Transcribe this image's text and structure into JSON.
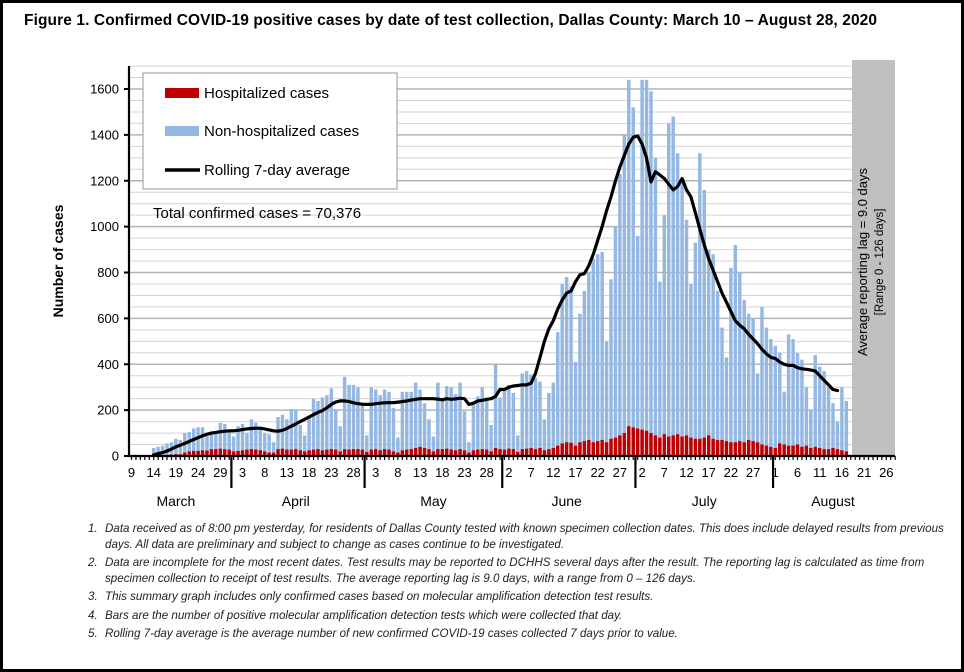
{
  "page": {
    "title": "Figure 1. Confirmed COVID-19 positive cases by date of test collection, Dallas County: March 10 – August 28, 2020"
  },
  "chart_data": {
    "type": "bar",
    "stacked": true,
    "title": "Figure 1. Confirmed COVID-19 positive cases by date of test collection, Dallas County: March 10 – August 28, 2020",
    "xlabel": "",
    "ylabel": "Number of cases",
    "ylim": [
      0,
      1700
    ],
    "yticks": [
      0,
      200,
      400,
      600,
      800,
      1000,
      1200,
      1400,
      1600
    ],
    "grid": "horizontal minor gridlines every 50 cases",
    "x_axis": {
      "start_date": "2020-03-09",
      "end_date": "2020-08-28",
      "tick_days": [
        {
          "label": "9",
          "day": 0
        },
        {
          "label": "14",
          "day": 5
        },
        {
          "label": "19",
          "day": 10
        },
        {
          "label": "24",
          "day": 15
        },
        {
          "label": "29",
          "day": 20
        },
        {
          "label": "3",
          "day": 25
        },
        {
          "label": "8",
          "day": 30
        },
        {
          "label": "13",
          "day": 35
        },
        {
          "label": "18",
          "day": 40
        },
        {
          "label": "23",
          "day": 45
        },
        {
          "label": "28",
          "day": 50
        },
        {
          "label": "3",
          "day": 55
        },
        {
          "label": "8",
          "day": 60
        },
        {
          "label": "13",
          "day": 65
        },
        {
          "label": "18",
          "day": 70
        },
        {
          "label": "23",
          "day": 75
        },
        {
          "label": "28",
          "day": 80
        },
        {
          "label": "2",
          "day": 85
        },
        {
          "label": "7",
          "day": 90
        },
        {
          "label": "12",
          "day": 95
        },
        {
          "label": "17",
          "day": 100
        },
        {
          "label": "22",
          "day": 105
        },
        {
          "label": "27",
          "day": 110
        },
        {
          "label": "2",
          "day": 115
        },
        {
          "label": "7",
          "day": 120
        },
        {
          "label": "12",
          "day": 125
        },
        {
          "label": "17",
          "day": 130
        },
        {
          "label": "22",
          "day": 135
        },
        {
          "label": "27",
          "day": 140
        },
        {
          "label": "1",
          "day": 145
        },
        {
          "label": "6",
          "day": 150
        },
        {
          "label": "11",
          "day": 155
        },
        {
          "label": "16",
          "day": 160
        },
        {
          "label": "21",
          "day": 165
        },
        {
          "label": "26",
          "day": 170
        }
      ],
      "month_separators_day": [
        22.5,
        52.5,
        83.5,
        113.5,
        144.5
      ],
      "months": [
        {
          "label": "March",
          "center_day": 10
        },
        {
          "label": "April",
          "center_day": 37
        },
        {
          "label": "May",
          "center_day": 68
        },
        {
          "label": "June",
          "center_day": 98
        },
        {
          "label": "July",
          "center_day": 129
        },
        {
          "label": "August",
          "center_day": 158
        }
      ]
    },
    "first_bar_day": 5,
    "series": [
      {
        "name": "Non-hospitalized cases",
        "color": "#95b8e3",
        "note": "values are TOTAL daily cases (hospitalized + non-hospitalized), one per day starting first_bar_day",
        "values": [
          35,
          40,
          45,
          55,
          60,
          75,
          70,
          100,
          105,
          120,
          125,
          125,
          95,
          100,
          100,
          145,
          140,
          110,
          85,
          130,
          140,
          100,
          160,
          145,
          125,
          100,
          95,
          60,
          170,
          180,
          160,
          205,
          200,
          135,
          90,
          175,
          250,
          240,
          255,
          265,
          295,
          205,
          130,
          345,
          310,
          310,
          300,
          230,
          90,
          300,
          290,
          265,
          290,
          280,
          210,
          80,
          280,
          280,
          280,
          320,
          290,
          230,
          160,
          85,
          320,
          250,
          305,
          300,
          270,
          320,
          195,
          60,
          230,
          260,
          300,
          250,
          135,
          400,
          255,
          285,
          310,
          275,
          90,
          360,
          370,
          355,
          340,
          325,
          160,
          275,
          320,
          540,
          750,
          780,
          740,
          410,
          620,
          720,
          800,
          860,
          880,
          890,
          500,
          770,
          1000,
          1230,
          1400,
          1640,
          1520,
          960,
          1640,
          1640,
          1590,
          1300,
          760,
          1050,
          1450,
          1480,
          1320,
          1190,
          1030,
          750,
          930,
          1320,
          1160,
          900,
          880,
          720,
          560,
          430,
          820,
          920,
          800,
          680,
          620,
          600,
          360,
          650,
          560,
          510,
          480,
          450,
          280,
          530,
          510,
          450,
          420,
          300,
          200,
          440,
          390,
          370,
          300,
          230,
          150,
          300,
          240
        ]
      },
      {
        "name": "Hospitalized cases",
        "color": "#c00000",
        "values": [
          2,
          3,
          4,
          5,
          6,
          8,
          8,
          15,
          20,
          22,
          22,
          25,
          24,
          30,
          30,
          32,
          30,
          28,
          20,
          22,
          25,
          28,
          30,
          28,
          25,
          20,
          15,
          15,
          30,
          32,
          28,
          28,
          30,
          25,
          20,
          25,
          28,
          30,
          25,
          28,
          30,
          28,
          20,
          30,
          28,
          30,
          30,
          28,
          18,
          28,
          30,
          25,
          30,
          28,
          20,
          15,
          25,
          28,
          30,
          35,
          40,
          35,
          30,
          20,
          30,
          30,
          32,
          28,
          25,
          30,
          25,
          15,
          25,
          28,
          30,
          28,
          20,
          35,
          30,
          28,
          32,
          30,
          18,
          30,
          32,
          35,
          30,
          35,
          25,
          30,
          35,
          45,
          55,
          60,
          58,
          45,
          60,
          65,
          70,
          60,
          65,
          70,
          60,
          75,
          80,
          90,
          100,
          130,
          125,
          120,
          115,
          110,
          100,
          90,
          80,
          95,
          85,
          90,
          95,
          85,
          90,
          80,
          75,
          75,
          80,
          90,
          75,
          70,
          70,
          65,
          60,
          60,
          65,
          60,
          70,
          65,
          60,
          50,
          45,
          40,
          35,
          55,
          50,
          45,
          45,
          50,
          40,
          45,
          35,
          40,
          35,
          30,
          30,
          35,
          30,
          25,
          20,
          25,
          15,
          10,
          10,
          20,
          15
        ]
      },
      {
        "name": "Rolling 7-day average",
        "type": "line",
        "color": "#000000",
        "start_day": 5,
        "values": [
          5,
          10,
          15,
          22,
          30,
          40,
          47,
          55,
          63,
          72,
          80,
          88,
          95,
          100,
          103,
          106,
          108,
          110,
          110,
          112,
          115,
          118,
          120,
          121,
          121,
          118,
          114,
          110,
          108,
          112,
          120,
          130,
          140,
          150,
          160,
          170,
          180,
          190,
          198,
          210,
          225,
          235,
          240,
          240,
          237,
          232,
          228,
          226,
          225,
          225,
          228,
          230,
          232,
          233,
          233,
          235,
          237,
          240,
          244,
          247,
          250,
          250,
          250,
          250,
          248,
          245,
          250,
          247,
          249,
          252,
          250,
          225,
          230,
          240,
          243,
          247,
          250,
          260,
          290,
          290,
          300,
          305,
          308,
          310,
          310,
          318,
          360,
          430,
          500,
          555,
          590,
          640,
          680,
          710,
          720,
          760,
          790,
          795,
          830,
          880,
          940,
          1000,
          1070,
          1130,
          1200,
          1260,
          1310,
          1360,
          1390,
          1395,
          1360,
          1300,
          1195,
          1240,
          1225,
          1210,
          1185,
          1160,
          1175,
          1210,
          1160,
          1130,
          1060,
          990,
          920,
          860,
          810,
          760,
          710,
          670,
          630,
          590,
          570,
          555,
          530,
          510,
          490,
          465,
          445,
          430,
          425,
          410,
          400,
          395,
          395,
          385,
          380,
          378,
          375,
          370,
          350,
          330,
          310,
          290,
          285
        ]
      }
    ],
    "legend": {
      "placement": "top-left",
      "entries": [
        "Hospitalized cases",
        "Non-hospitalized cases",
        "Rolling 7-day average"
      ]
    },
    "annotations": [
      {
        "text": "Total confirmed cases = 70,376",
        "placement": "top-left, below legend"
      },
      {
        "text": "Average reporting lag = 9.0 days",
        "placement": "right shaded region, rotated"
      },
      {
        "text": "[Range 0 - 126 days]",
        "placement": "right shaded region, rotated"
      }
    ],
    "shaded_region": {
      "start_day": 162,
      "end_day": 172,
      "color": "#c0c0c0"
    }
  },
  "footnotes": [
    {
      "num": "1.",
      "text": "Data received as of 8:00 pm yesterday, for residents of Dallas County tested with known specimen collection dates.  This does include delayed results from previous days. All data are preliminary and subject to change as cases continue to be investigated."
    },
    {
      "num": "2.",
      "text": "Data are incomplete for the most recent dates. Test results may be reported to DCHHS several days after the result. The reporting lag is calculated as time from specimen collection to receipt of test results. The average reporting lag is 9.0 days, with a range from 0 – 126 days."
    },
    {
      "num": "3.",
      "text": "This summary graph includes only confirmed cases based on molecular amplification detection test results."
    },
    {
      "num": "4.",
      "text": "Bars are the number of positive molecular amplification detection tests which were collected that day."
    },
    {
      "num": "5.",
      "text": "Rolling 7-day average is the average number of new confirmed COVID-19 cases collected 7 days prior to value."
    }
  ]
}
